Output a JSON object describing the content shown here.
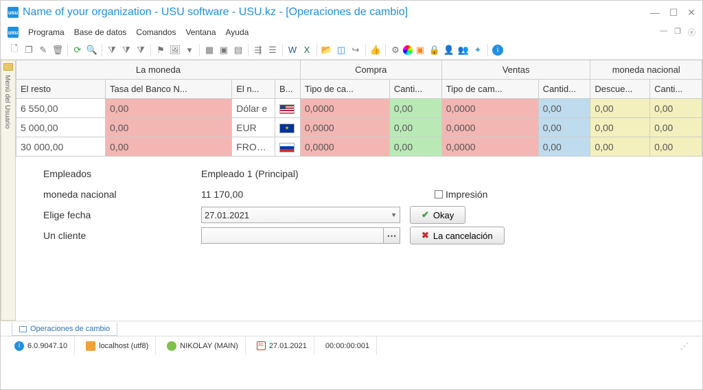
{
  "window": {
    "title": "Name of your organization - USU software - USU.kz - [Operaciones de cambio]"
  },
  "menu": {
    "programa": "Programa",
    "basededatos": "Base de datos",
    "comandos": "Comandos",
    "ventana": "Ventana",
    "ayuda": "Ayuda"
  },
  "sidebar": {
    "label": "Menú del Usuario"
  },
  "table": {
    "groups": {
      "moneda": "La moneda",
      "compra": "Compra",
      "ventas": "Ventas",
      "nacional": "moneda nacional"
    },
    "cols": {
      "resto": "El resto",
      "tasa": "Tasa del Banco N...",
      "nombre": "El n...",
      "b": "B...",
      "tipo_c": "Tipo de ca...",
      "cant_c": "Canti...",
      "tipo_v": "Tipo de cam...",
      "cant_v": "Cantid...",
      "desc": "Descue...",
      "cant_n": "Canti..."
    },
    "rows": [
      {
        "resto": "6 550,00",
        "tasa": "0,00",
        "nombre": "Dólar e",
        "flag": "us",
        "tipo_c": "0,0000",
        "cant_c": "0,00",
        "tipo_v": "0,0000",
        "cant_v": "0,00",
        "desc": "0,00",
        "cant_n": "0,00"
      },
      {
        "resto": "5 000,00",
        "tasa": "0,00",
        "nombre": "EUR",
        "flag": "eu",
        "tipo_c": "0,0000",
        "cant_c": "0,00",
        "tipo_v": "0,0000",
        "cant_v": "0,00",
        "desc": "0,00",
        "cant_n": "0,00"
      },
      {
        "resto": "30 000,00",
        "tasa": "0,00",
        "nombre": "FROTAI",
        "flag": "ru",
        "tipo_c": "0,0000",
        "cant_c": "0,00",
        "tipo_v": "0,0000",
        "cant_v": "0,00",
        "desc": "0,00",
        "cant_n": "0,00"
      }
    ]
  },
  "form": {
    "empleados_lbl": "Empleados",
    "empleados_val": "Empleado 1 (Principal)",
    "nacional_lbl": "moneda nacional",
    "nacional_val": "11 170,00",
    "fecha_lbl": "Elige fecha",
    "fecha_val": "27.01.2021",
    "cliente_lbl": "Un cliente",
    "cliente_val": "",
    "impresion_lbl": "Impresión",
    "okay_btn": "Okay",
    "cancel_btn": "La cancelación"
  },
  "tabs": {
    "current": "Operaciones de cambio"
  },
  "status": {
    "version": "6.0.9047.10",
    "host": "localhost (utf8)",
    "user": "NIKOLAY (MAIN)",
    "date": "27.01.2021",
    "time": "00:00:00:001"
  },
  "colors": {
    "pink": "#f3b6b3",
    "green": "#b9eab6",
    "blue": "#bfdcee",
    "yellow": "#f4f0bd",
    "accent": "#1f90e0"
  }
}
